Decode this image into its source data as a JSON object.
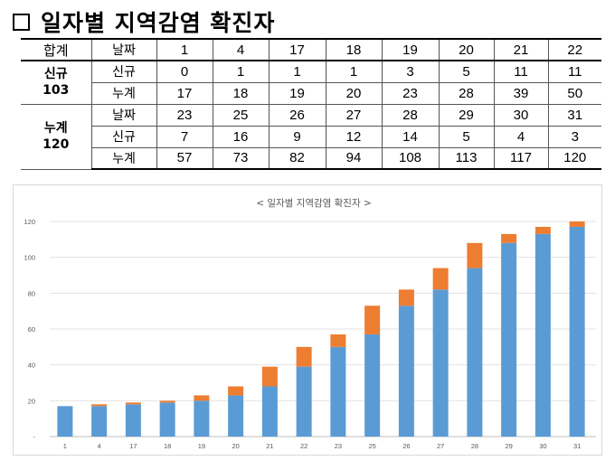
{
  "title": "일자별 지역감염 확진자",
  "table": {
    "corner": "합계",
    "date_label": "날짜",
    "new_label": "신규",
    "cum_label": "누계",
    "group1": {
      "name": "신규",
      "total": "103"
    },
    "group2": {
      "name": "누계",
      "total": "120"
    },
    "block1": {
      "dates": [
        "1",
        "4",
        "17",
        "18",
        "19",
        "20",
        "21",
        "22"
      ],
      "new": [
        "0",
        "1",
        "1",
        "1",
        "3",
        "5",
        "11",
        "11"
      ],
      "cum": [
        "17",
        "18",
        "19",
        "20",
        "23",
        "28",
        "39",
        "50"
      ]
    },
    "block2": {
      "dates": [
        "23",
        "25",
        "26",
        "27",
        "28",
        "29",
        "30",
        "31"
      ],
      "new": [
        "7",
        "16",
        "9",
        "12",
        "14",
        "5",
        "4",
        "3"
      ],
      "cum": [
        "57",
        "73",
        "82",
        "94",
        "108",
        "113",
        "117",
        "120"
      ]
    }
  },
  "chart_data": {
    "type": "bar",
    "stacked": true,
    "title": "< 일자별 지역감염 확진자 >",
    "categories": [
      "1",
      "4",
      "17",
      "18",
      "19",
      "20",
      "21",
      "22",
      "23",
      "25",
      "26",
      "27",
      "28",
      "29",
      "30",
      "31"
    ],
    "series": [
      {
        "color": "#5b9bd5",
        "values": [
          17,
          17,
          18,
          19,
          20,
          23,
          28,
          39,
          50,
          57,
          73,
          82,
          94,
          108,
          113,
          117
        ]
      },
      {
        "color": "#ed7d31",
        "values": [
          0,
          1,
          1,
          1,
          3,
          5,
          11,
          11,
          7,
          16,
          9,
          12,
          14,
          5,
          4,
          3
        ]
      }
    ],
    "ylim": [
      0,
      120
    ],
    "yticks": [
      "-",
      "20",
      "40",
      "60",
      "80",
      "100",
      "120"
    ],
    "grid": true,
    "legend": "none"
  }
}
